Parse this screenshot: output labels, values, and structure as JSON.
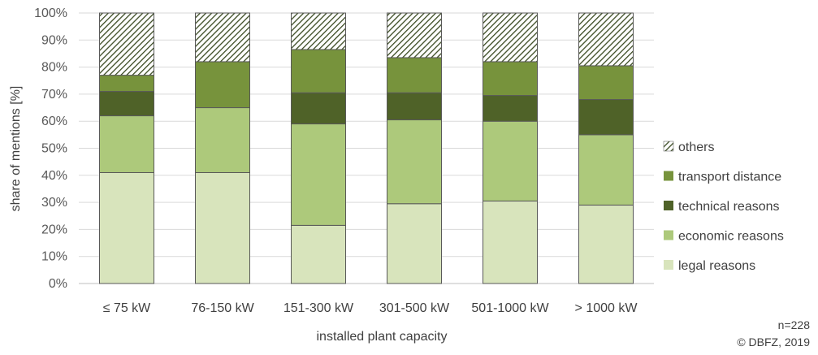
{
  "chart_data": {
    "type": "bar",
    "stacked": true,
    "categories": [
      "≤ 75 kW",
      "76-150 kW",
      "151-300 kW",
      "301-500 kW",
      "501-1000 kW",
      "> 1000 kW"
    ],
    "series": [
      {
        "name": "legal reasons",
        "color": "#d8e4bc",
        "values": [
          41,
          41,
          21.5,
          29.5,
          30.5,
          29
        ]
      },
      {
        "name": "economic reasons",
        "color": "#adc97b",
        "values": [
          21,
          24,
          37.5,
          31,
          29.5,
          26
        ]
      },
      {
        "name": "technical reasons",
        "color": "#4f6228",
        "values": [
          9,
          0,
          11.5,
          10,
          9.5,
          13
        ]
      },
      {
        "name": "transport distance",
        "color": "#77933c",
        "values": [
          6,
          17,
          16,
          13,
          12.5,
          12.5
        ]
      },
      {
        "name": "others",
        "color": "hatch",
        "values": [
          23,
          18,
          13.5,
          16.5,
          18,
          19.5
        ]
      }
    ],
    "xlabel": "installed plant capacity",
    "ylabel": "share of mentions [%]",
    "ylim": [
      0,
      100
    ],
    "yticks": [
      "0%",
      "10%",
      "20%",
      "30%",
      "40%",
      "50%",
      "60%",
      "70%",
      "80%",
      "90%",
      "100%"
    ],
    "grid": true,
    "legend_position": "right"
  },
  "notes": {
    "sample": "n=228",
    "copyright": "© DBFZ, 2019"
  }
}
